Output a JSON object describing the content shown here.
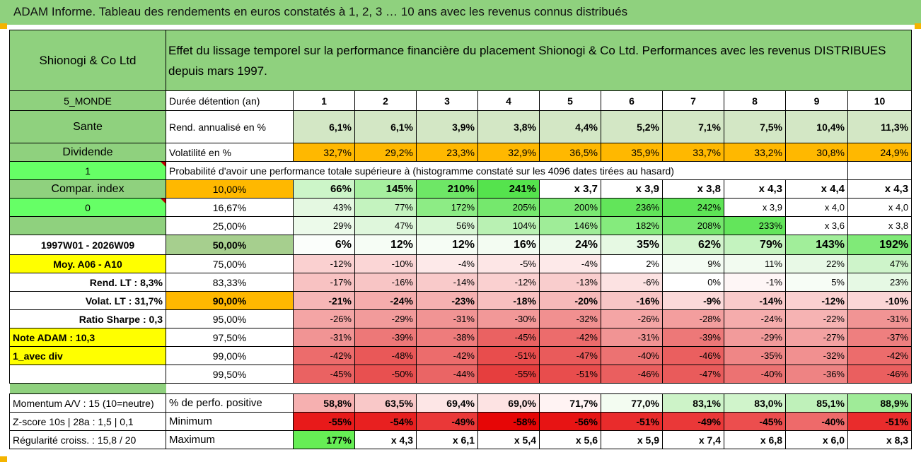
{
  "title": "ADAM Informe. Tableau des rendements en euros constatés à 1, 2, 3 … 10 ans avec les revenus connus distribués",
  "header": {
    "company": "Shionogi & Co Ltd",
    "description": "Effet du lissage temporel sur la performance financière du placement Shionogi & Co Ltd. Performances avec les revenus DISTRIBUES depuis mars 1997."
  },
  "years": [
    "1",
    "2",
    "3",
    "4",
    "5",
    "6",
    "7",
    "8",
    "9",
    "10"
  ],
  "left_labels": {
    "region": "5_MONDE",
    "sector": "Sante",
    "dividend": "Dividende",
    "one": "1",
    "compar": "Compar. index",
    "zero": "0",
    "period": "1997W01 - 2026W09",
    "moy": "Moy. A06 - A10",
    "rend_lt": "Rend. LT :   8,3%",
    "volat_lt": "Volat. LT :   31,7%",
    "sharpe": "Ratio Sharpe :    0,3",
    "note": "Note ADAM : 10,3",
    "avec_div": "1_avec div"
  },
  "rows": {
    "duree": {
      "label": "Durée détention (an)"
    },
    "rend": {
      "label": "Rend. annualisé en %",
      "values": [
        "6,1%",
        "6,1%",
        "3,9%",
        "3,8%",
        "4,4%",
        "5,2%",
        "7,1%",
        "7,5%",
        "10,4%",
        "11,3%"
      ]
    },
    "volat": {
      "label": "Volatilité en %",
      "values": [
        "32,7%",
        "29,2%",
        "23,3%",
        "32,9%",
        "36,5%",
        "35,9%",
        "33,7%",
        "33,2%",
        "30,8%",
        "24,9%"
      ]
    },
    "proba_label": "Probabilité d'avoir une performance totale supérieure à (histogramme constaté sur les 4096 dates tirées au hasard)"
  },
  "percentiles": [
    {
      "p": "10,00%",
      "values": [
        "66%",
        "145%",
        "210%",
        "241%",
        "x 3,7",
        "x 3,9",
        "x 3,8",
        "x 4,3",
        "x 4,4",
        "x 4,3"
      ],
      "colors": [
        "#ccf5c8",
        "#a6ef9f",
        "#6ee766",
        "#55e34d",
        "#ffffff",
        "#ffffff",
        "#ffffff",
        "#ffffff",
        "#ffffff",
        "#ffffff"
      ]
    },
    {
      "p": "16,67%",
      "values": [
        "43%",
        "77%",
        "172%",
        "205%",
        "200%",
        "236%",
        "242%",
        "x 3,9",
        "x 4,0",
        "x 4,0"
      ],
      "colors": [
        "#e4f8e1",
        "#c4f3bf",
        "#8dec85",
        "#75e86d",
        "#7ae972",
        "#62e55a",
        "#5ee456",
        "#ffffff",
        "#ffffff",
        "#ffffff"
      ]
    },
    {
      "p": "25,00%",
      "values": [
        "29%",
        "47%",
        "56%",
        "104%",
        "146%",
        "182%",
        "208%",
        "233%",
        "x 3,6",
        "x 3,8"
      ],
      "colors": [
        "#ecfaea",
        "#dff7dc",
        "#d8f6d4",
        "#b9f1b3",
        "#9fed98",
        "#85eb7d",
        "#74e76c",
        "#63e55b",
        "#ffffff",
        "#ffffff"
      ]
    },
    {
      "p": "50,00%",
      "values": [
        "6%",
        "12%",
        "12%",
        "16%",
        "24%",
        "35%",
        "62%",
        "79%",
        "143%",
        "192%"
      ],
      "colors": [
        "#fbfefb",
        "#f6fdf5",
        "#f6fdf5",
        "#f3fcf2",
        "#edfaeb",
        "#e6f9e3",
        "#d2f4cd",
        "#c4f3bf",
        "#a1ee9a",
        "#80ea78"
      ]
    },
    {
      "p": "75,00%",
      "values": [
        "-12%",
        "-10%",
        "-4%",
        "-5%",
        "-4%",
        "2%",
        "9%",
        "11%",
        "22%",
        "47%"
      ],
      "colors": [
        "#fad0d0",
        "#fbd6d6",
        "#fde9e9",
        "#fde6e6",
        "#fde9e9",
        "#ffffff",
        "#f4fcf3",
        "#f2fbf0",
        "#e8f9e6",
        "#cef4ca"
      ]
    },
    {
      "p": "83,33%",
      "values": [
        "-17%",
        "-16%",
        "-14%",
        "-12%",
        "-13%",
        "-6%",
        "0%",
        "-1%",
        "5%",
        "23%"
      ],
      "colors": [
        "#f8c2c2",
        "#f8c5c5",
        "#f9caca",
        "#fad0d0",
        "#f9cdcd",
        "#fce2e2",
        "#ffffff",
        "#fef6f6",
        "#f7fdf6",
        "#e6f9e4"
      ]
    },
    {
      "p": "90,00%",
      "values": [
        "-21%",
        "-24%",
        "-23%",
        "-18%",
        "-20%",
        "-16%",
        "-9%",
        "-14%",
        "-12%",
        "-10%"
      ],
      "colors": [
        "#f6b6b6",
        "#f5acac",
        "#f5b0b0",
        "#f8bfbf",
        "#f7b9b9",
        "#f8c5c5",
        "#fbd9d9",
        "#f9caca",
        "#fad0d0",
        "#fbd6d6"
      ]
    },
    {
      "p": "95,00%",
      "values": [
        "-26%",
        "-29%",
        "-31%",
        "-30%",
        "-32%",
        "-26%",
        "-28%",
        "-24%",
        "-22%",
        "-31%"
      ],
      "colors": [
        "#f4a5a5",
        "#f29b9b",
        "#f19494",
        "#f29898",
        "#f19090",
        "#f4a5a5",
        "#f39e9e",
        "#f5acac",
        "#f6b3b3",
        "#f19494"
      ]
    },
    {
      "p": "97,50%",
      "values": [
        "-31%",
        "-39%",
        "-38%",
        "-45%",
        "-42%",
        "-31%",
        "-39%",
        "-29%",
        "-27%",
        "-37%"
      ],
      "colors": [
        "#f19494",
        "#ed7878",
        "#ee7c7c",
        "#ea6262",
        "#ec6c6c",
        "#f19494",
        "#ed7878",
        "#f29b9b",
        "#f3a2a2",
        "#ee7f7f"
      ]
    },
    {
      "p": "99,00%",
      "values": [
        "-42%",
        "-48%",
        "-42%",
        "-51%",
        "-47%",
        "-40%",
        "-46%",
        "-35%",
        "-32%",
        "-42%"
      ],
      "colors": [
        "#ec6c6c",
        "#e95858",
        "#ec6c6c",
        "#e84d4d",
        "#e95b5b",
        "#ec7272",
        "#ea5f5f",
        "#ef8686",
        "#f19090",
        "#ec6c6c"
      ]
    },
    {
      "p": "99,50%",
      "values": [
        "-45%",
        "-50%",
        "-44%",
        "-55%",
        "-51%",
        "-46%",
        "-47%",
        "-40%",
        "-36%",
        "-46%"
      ],
      "colors": [
        "#ea6262",
        "#e85050",
        "#ea6565",
        "#e63e3e",
        "#e84d4d",
        "#ea5f5f",
        "#e95b5b",
        "#ec7272",
        "#ee8383",
        "#ea5f5f"
      ]
    }
  ],
  "bottom": {
    "momentum_label": "Momentum A/V : 15 (10=neutre)",
    "zscore_label": "Z-score 10s | 28a : 1,5 | 0,1",
    "regularite_label": "Régularité croiss. : 15,8 / 20",
    "positive": {
      "label": "% de perfo. positive",
      "values": [
        "58,8%",
        "63,5%",
        "69,4%",
        "69,0%",
        "71,7%",
        "77,0%",
        "83,1%",
        "83,0%",
        "85,1%",
        "88,9%"
      ],
      "colors": [
        "#f6b0b0",
        "#f9c8c8",
        "#fde6e6",
        "#fde3e3",
        "#fff3f3",
        "#f3fcf1",
        "#cdf3c8",
        "#d0f4cb",
        "#bff1ba",
        "#9feb98"
      ]
    },
    "minimum": {
      "label": "Minimum",
      "values": [
        "-55%",
        "-54%",
        "-49%",
        "-58%",
        "-56%",
        "-51%",
        "-49%",
        "-45%",
        "-40%",
        "-51%"
      ],
      "colors": [
        "#e81a1a",
        "#e82020",
        "#ea3838",
        "#e60606",
        "#e71414",
        "#e92c2c",
        "#ea3838",
        "#ec4e4e",
        "#ee6a6a",
        "#e92c2c"
      ]
    },
    "maximum": {
      "label": "Maximum",
      "values": [
        "177%",
        "x 4,3",
        "x 6,1",
        "x 5,4",
        "x 5,6",
        "x 5,9",
        "x 7,4",
        "x 6,8",
        "x 6,0",
        "x 8,3"
      ],
      "colors": [
        "#66ee55",
        "#ffffff",
        "#ffffff",
        "#ffffff",
        "#ffffff",
        "#ffffff",
        "#ffffff",
        "#ffffff",
        "#ffffff",
        "#ffffff"
      ]
    }
  },
  "colors": {
    "green": "#8fd17e",
    "bright_green": "#66ff66",
    "yellow": "#ffff00",
    "orange": "#ffb800",
    "dark_red_text": "#c00000"
  }
}
